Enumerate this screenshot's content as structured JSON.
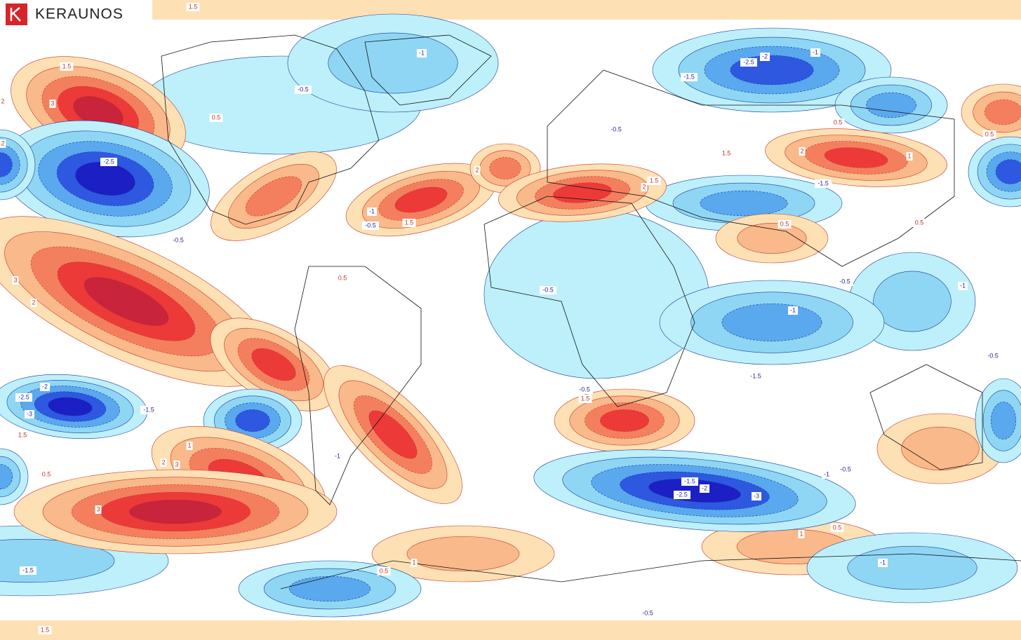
{
  "logo": {
    "text": "KERAUNOS"
  },
  "contour_labels": [
    1.5,
    1.5,
    3,
    2,
    2,
    -2.5,
    0.5,
    -0.5,
    -1,
    -2.5,
    -2,
    -1,
    -1.5,
    -0.5,
    0.5,
    0.5,
    1.5,
    2,
    1,
    -1.5,
    2,
    1.5,
    2,
    -1,
    -0.5,
    1.5,
    0.5,
    0.5,
    -0.5,
    3,
    2,
    0.5,
    -0.5,
    -0.5,
    -1,
    -1,
    -0.5,
    -1.5,
    -2,
    -2.5,
    -3,
    -1.5,
    -0.5,
    1.5,
    1.5,
    1,
    2,
    3,
    0.5,
    -1,
    -0.5,
    -1,
    -1.5,
    -2,
    -2.5,
    -3,
    3,
    0.5,
    1,
    1,
    0.5,
    -1,
    -1.5,
    -0.5,
    1.5
  ]
}
